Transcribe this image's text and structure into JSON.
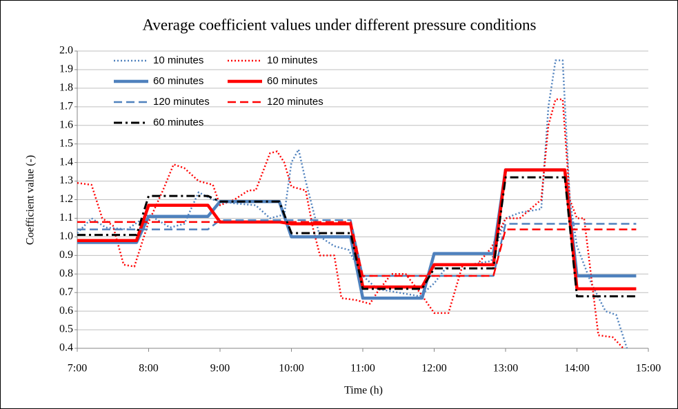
{
  "chart_data": {
    "type": "line",
    "title": "Average coefficient values under different pressure conditions",
    "x_label": "Time (h)",
    "y_label": "Coefficient value (-)",
    "xlim": [
      7,
      15
    ],
    "xticks": [
      {
        "value": 7,
        "label": "7:00"
      },
      {
        "value": 8,
        "label": "8:00"
      },
      {
        "value": 9,
        "label": "9:00"
      },
      {
        "value": 10,
        "label": "10:00"
      },
      {
        "value": 11,
        "label": "11:00"
      },
      {
        "value": 12,
        "label": "12:00"
      },
      {
        "value": 13,
        "label": "13:00"
      },
      {
        "value": 14,
        "label": "14:00"
      },
      {
        "value": 15,
        "label": "15:00"
      }
    ],
    "ylim": [
      0.4,
      2.0
    ],
    "yticks": [
      0.4,
      0.5,
      0.6,
      0.7,
      0.8,
      0.9,
      {
        "value": 1.0,
        "label": "1.0"
      },
      1.1,
      1.2,
      1.3,
      1.4,
      1.5,
      1.6,
      1.7,
      1.8,
      1.9,
      {
        "value": 2.0,
        "label": "2.0"
      }
    ],
    "grid": true,
    "legend": "upper left",
    "series": [
      {
        "name": "10 minutes",
        "color": "#4f81bd",
        "dash": "dotted",
        "width": 2.5,
        "x": [
          7.0,
          7.2,
          7.4,
          7.7,
          8.0,
          8.3,
          8.5,
          8.7,
          8.9,
          9.2,
          9.5,
          9.7,
          9.9,
          10.0,
          10.1,
          10.2,
          10.4,
          10.6,
          10.8,
          11.0,
          11.2,
          11.5,
          11.8,
          12.0,
          12.2,
          12.5,
          12.8,
          13.0,
          13.2,
          13.5,
          13.6,
          13.7,
          13.8,
          13.9,
          14.0,
          14.2,
          14.4,
          14.55,
          14.7
        ],
        "values": [
          1.02,
          1.1,
          1.05,
          1.04,
          1.12,
          1.05,
          1.07,
          1.24,
          1.2,
          1.18,
          1.17,
          1.1,
          1.12,
          1.4,
          1.47,
          1.3,
          1.0,
          0.95,
          0.93,
          0.79,
          0.72,
          0.7,
          0.68,
          0.75,
          0.85,
          0.85,
          0.87,
          1.1,
          1.13,
          1.15,
          1.7,
          1.95,
          1.95,
          1.2,
          0.95,
          0.75,
          0.6,
          0.58,
          0.4
        ]
      },
      {
        "name": "10 minutes",
        "color": "#ff0000",
        "dash": "dotted",
        "width": 2.5,
        "x": [
          7.0,
          7.2,
          7.35,
          7.5,
          7.65,
          7.8,
          8.0,
          8.2,
          8.35,
          8.5,
          8.7,
          8.9,
          9.0,
          9.2,
          9.4,
          9.5,
          9.7,
          9.8,
          9.9,
          10.0,
          10.2,
          10.3,
          10.4,
          10.6,
          10.7,
          10.9,
          11.1,
          11.2,
          11.4,
          11.6,
          11.8,
          12.0,
          12.2,
          12.4,
          12.6,
          12.8,
          13.0,
          13.2,
          13.5,
          13.6,
          13.7,
          13.8,
          13.9,
          14.0,
          14.1,
          14.3,
          14.5,
          14.65
        ],
        "values": [
          1.29,
          1.28,
          1.1,
          1.06,
          0.85,
          0.84,
          1.08,
          1.25,
          1.39,
          1.37,
          1.3,
          1.28,
          1.17,
          1.2,
          1.25,
          1.25,
          1.45,
          1.46,
          1.4,
          1.27,
          1.25,
          1.05,
          0.9,
          0.9,
          0.67,
          0.66,
          0.64,
          0.7,
          0.8,
          0.8,
          0.7,
          0.59,
          0.59,
          0.85,
          0.85,
          0.94,
          1.1,
          1.1,
          1.2,
          1.6,
          1.74,
          1.74,
          1.2,
          1.1,
          1.1,
          0.47,
          0.46,
          0.4
        ]
      },
      {
        "name": "60 minutes",
        "color": "#4f81bd",
        "dash": "solid",
        "width": 4.5,
        "x": [
          7.0,
          7.83,
          8.0,
          8.83,
          9.0,
          9.83,
          10.0,
          10.83,
          11.0,
          11.83,
          12.0,
          12.83,
          13.0,
          13.83,
          14.0,
          14.83
        ],
        "values": [
          0.97,
          0.97,
          1.11,
          1.11,
          1.19,
          1.19,
          1.0,
          1.0,
          0.67,
          0.67,
          0.91,
          0.91,
          1.36,
          1.36,
          0.79,
          0.79
        ]
      },
      {
        "name": "60 minutes",
        "color": "#ff0000",
        "dash": "solid",
        "width": 4.5,
        "x": [
          7.0,
          7.83,
          8.0,
          8.83,
          9.0,
          9.83,
          10.0,
          10.83,
          11.0,
          11.83,
          12.0,
          12.83,
          13.0,
          13.83,
          14.0,
          14.83
        ],
        "values": [
          0.98,
          0.98,
          1.17,
          1.17,
          1.08,
          1.08,
          1.07,
          1.07,
          0.73,
          0.73,
          0.85,
          0.85,
          1.36,
          1.36,
          0.72,
          0.72
        ]
      },
      {
        "name": "120 minutes",
        "color": "#4f81bd",
        "dash": "dashed",
        "width": 2.5,
        "x": [
          7.0,
          8.83,
          9.0,
          10.83,
          11.0,
          12.83,
          13.0,
          14.83
        ],
        "values": [
          1.04,
          1.04,
          1.09,
          1.09,
          0.79,
          0.79,
          1.07,
          1.07
        ]
      },
      {
        "name": "120 minutes",
        "color": "#ff0000",
        "dash": "dashed",
        "width": 2.5,
        "x": [
          7.0,
          10.83,
          11.0,
          12.83,
          13.0,
          14.83
        ],
        "values": [
          1.08,
          1.08,
          0.79,
          0.79,
          1.04,
          1.04
        ]
      },
      {
        "name": "60 minutes",
        "color": "#000000",
        "dash": "dashdot",
        "width": 3,
        "x": [
          7.0,
          7.83,
          8.0,
          8.83,
          9.0,
          9.83,
          10.0,
          10.83,
          11.0,
          11.83,
          12.0,
          12.83,
          13.0,
          13.83,
          14.0,
          14.83
        ],
        "values": [
          1.01,
          1.01,
          1.22,
          1.22,
          1.19,
          1.19,
          1.02,
          1.02,
          0.72,
          0.72,
          0.83,
          0.83,
          1.32,
          1.32,
          0.68,
          0.68
        ]
      }
    ]
  }
}
